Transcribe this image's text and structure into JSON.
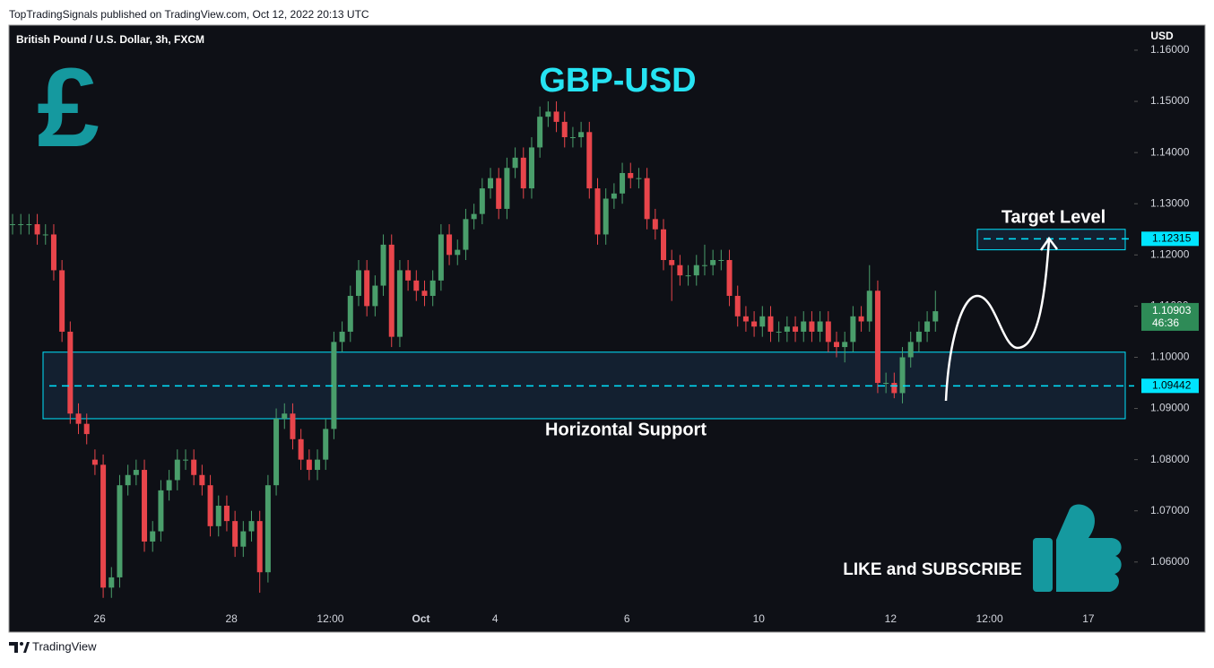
{
  "chart_data": {
    "type": "candlestick",
    "attribution": "TopTradingSignals published on TradingView.com, Oct 12, 2022 20:13 UTC",
    "subtitle": "British Pound / U.S. Dollar, 3h, FXCM",
    "title": "GBP-USD",
    "logo_symbol": "£",
    "y_axis_label": "USD",
    "brand": "TradingView",
    "annotations": [
      "Target Level",
      "Horizontal Support",
      "LIKE and SUBSCRIBE"
    ],
    "up_color": "#4a9e6b",
    "down_color": "#e8454b",
    "level_color": "#00e5ff",
    "categories": [
      null,
      null,
      null,
      null,
      null,
      null,
      null,
      null,
      null,
      null,
      null,
      "26",
      null,
      null,
      null,
      null,
      null,
      null,
      null,
      null,
      null,
      null,
      null,
      null,
      null,
      null,
      null,
      "28",
      null,
      null,
      null,
      null,
      null,
      null,
      null,
      null,
      null,
      null,
      null,
      "12:00",
      null,
      null,
      null,
      null,
      null,
      null,
      null,
      null,
      null,
      null,
      "Oct",
      null,
      null,
      null,
      null,
      null,
      null,
      null,
      null,
      "4",
      null,
      null,
      null,
      null,
      null,
      null,
      null,
      null,
      null,
      null,
      null,
      null,
      null,
      null,
      null,
      "6",
      null,
      null,
      null,
      null,
      null,
      null,
      null,
      null,
      null,
      null,
      null,
      null,
      null,
      null,
      null,
      "10",
      null,
      null,
      null,
      null,
      null,
      null,
      null,
      null,
      null,
      null,
      null,
      null,
      null,
      null,
      null,
      "12",
      null,
      null,
      null,
      null,
      null,
      null,
      null,
      null,
      null,
      null,
      null,
      "12:00",
      null,
      null,
      null,
      null,
      null,
      null,
      null,
      null,
      null,
      null,
      null,
      "17"
    ],
    "open": [
      1.126,
      1.126,
      1.126,
      1.126,
      1.124,
      1.124,
      1.117,
      1.105,
      1.089,
      1.087,
      1.08,
      1.079,
      1.055,
      1.057,
      1.075,
      1.077,
      1.078,
      1.064,
      1.066,
      1.074,
      1.076,
      1.08,
      1.08,
      1.077,
      1.075,
      1.067,
      1.071,
      1.068,
      1.063,
      1.066,
      1.068,
      1.058,
      1.075,
      1.088,
      1.089,
      1.084,
      1.08,
      1.078,
      1.08,
      1.086,
      1.103,
      1.105,
      1.112,
      1.117,
      1.11,
      1.114,
      1.122,
      1.104,
      1.117,
      1.115,
      1.113,
      1.112,
      1.115,
      1.124,
      1.12,
      1.121,
      1.127,
      1.128,
      1.133,
      1.135,
      1.129,
      1.137,
      1.139,
      1.133,
      1.141,
      1.147,
      1.148,
      1.146,
      1.143,
      1.143,
      1.144,
      1.133,
      1.124,
      1.131,
      1.132,
      1.136,
      1.135,
      1.135,
      1.127,
      1.125,
      1.119,
      1.118,
      1.116,
      1.116,
      1.118,
      1.118,
      1.119,
      1.119,
      1.112,
      1.108,
      1.107,
      1.106,
      1.108,
      1.105,
      1.105,
      1.106,
      1.105,
      1.107,
      1.105,
      1.107,
      1.103,
      1.102,
      1.103,
      1.108,
      1.107,
      1.113,
      1.095,
      1.095,
      1.093,
      1.1,
      1.103,
      1.105,
      1.107,
      null,
      null,
      null,
      null,
      null,
      null,
      null,
      null,
      null,
      null,
      null,
      null,
      null,
      null,
      null,
      null,
      null,
      null,
      null
    ],
    "high": [
      1.128,
      1.128,
      1.128,
      1.128,
      1.126,
      1.126,
      1.119,
      1.107,
      1.091,
      1.089,
      1.082,
      1.081,
      1.059,
      1.077,
      1.079,
      1.08,
      1.08,
      1.068,
      1.076,
      1.078,
      1.082,
      1.082,
      1.082,
      1.079,
      1.077,
      1.073,
      1.073,
      1.07,
      1.068,
      1.07,
      1.07,
      1.077,
      1.09,
      1.091,
      1.091,
      1.086,
      1.082,
      1.082,
      1.088,
      1.105,
      1.107,
      1.114,
      1.119,
      1.119,
      1.116,
      1.124,
      1.124,
      1.119,
      1.119,
      1.117,
      1.115,
      1.117,
      1.126,
      1.126,
      1.123,
      1.129,
      1.13,
      1.135,
      1.137,
      1.137,
      1.139,
      1.141,
      1.141,
      1.143,
      1.149,
      1.15,
      1.15,
      1.148,
      1.145,
      1.146,
      1.146,
      1.135,
      1.133,
      1.134,
      1.138,
      1.138,
      1.137,
      1.137,
      1.129,
      1.127,
      1.121,
      1.12,
      1.118,
      1.12,
      1.122,
      1.121,
      1.121,
      1.121,
      1.114,
      1.11,
      1.109,
      1.11,
      1.11,
      1.107,
      1.108,
      1.108,
      1.109,
      1.109,
      1.109,
      1.109,
      1.105,
      1.105,
      1.11,
      1.11,
      1.118,
      1.115,
      1.097,
      1.097,
      1.102,
      1.105,
      1.107,
      1.109,
      1.113,
      null,
      null,
      null,
      null,
      null,
      null,
      null,
      null,
      null,
      null,
      null,
      null,
      null,
      null,
      null,
      null,
      null,
      null,
      null
    ],
    "low": [
      1.124,
      1.124,
      1.124,
      1.122,
      1.122,
      1.115,
      1.103,
      1.087,
      1.085,
      1.083,
      1.077,
      1.053,
      1.053,
      1.055,
      1.073,
      1.075,
      1.062,
      1.062,
      1.064,
      1.072,
      1.074,
      1.078,
      1.075,
      1.073,
      1.065,
      1.065,
      1.066,
      1.061,
      1.061,
      1.064,
      1.054,
      1.056,
      1.073,
      1.086,
      1.082,
      1.078,
      1.076,
      1.076,
      1.078,
      1.084,
      1.101,
      1.103,
      1.11,
      1.108,
      1.108,
      1.112,
      1.102,
      1.102,
      1.113,
      1.111,
      1.11,
      1.11,
      1.113,
      1.118,
      1.118,
      1.119,
      1.125,
      1.126,
      1.131,
      1.127,
      1.127,
      1.135,
      1.131,
      1.131,
      1.139,
      1.145,
      1.144,
      1.141,
      1.141,
      1.141,
      1.131,
      1.122,
      1.122,
      1.129,
      1.13,
      1.133,
      1.133,
      1.125,
      1.123,
      1.117,
      1.111,
      1.114,
      1.114,
      1.114,
      1.116,
      1.116,
      1.117,
      1.11,
      1.106,
      1.105,
      1.104,
      1.104,
      1.103,
      1.103,
      1.103,
      1.103,
      1.103,
      1.103,
      1.103,
      1.101,
      1.1,
      1.099,
      1.101,
      1.105,
      1.105,
      1.093,
      1.093,
      1.092,
      1.091,
      1.098,
      1.101,
      1.103,
      1.105,
      null,
      null,
      null,
      null,
      null,
      null,
      null,
      null,
      null,
      null,
      null,
      null,
      null,
      null,
      null,
      null,
      null,
      null,
      null
    ],
    "close": [
      1.126,
      1.126,
      1.126,
      1.124,
      1.124,
      1.117,
      1.105,
      1.089,
      1.087,
      1.085,
      1.079,
      1.055,
      1.057,
      1.075,
      1.077,
      1.078,
      1.064,
      1.066,
      1.074,
      1.076,
      1.08,
      1.08,
      1.077,
      1.075,
      1.067,
      1.071,
      1.068,
      1.063,
      1.066,
      1.068,
      1.058,
      1.075,
      1.088,
      1.089,
      1.084,
      1.08,
      1.078,
      1.08,
      1.086,
      1.103,
      1.105,
      1.112,
      1.117,
      1.11,
      1.114,
      1.122,
      1.104,
      1.117,
      1.115,
      1.113,
      1.112,
      1.115,
      1.124,
      1.12,
      1.121,
      1.127,
      1.128,
      1.133,
      1.135,
      1.129,
      1.137,
      1.139,
      1.133,
      1.141,
      1.147,
      1.148,
      1.146,
      1.143,
      1.143,
      1.144,
      1.133,
      1.124,
      1.131,
      1.132,
      1.136,
      1.135,
      1.135,
      1.127,
      1.125,
      1.119,
      1.118,
      1.116,
      1.116,
      1.118,
      1.118,
      1.119,
      1.119,
      1.112,
      1.108,
      1.107,
      1.106,
      1.108,
      1.105,
      1.105,
      1.106,
      1.105,
      1.107,
      1.105,
      1.107,
      1.103,
      1.102,
      1.103,
      1.108,
      1.107,
      1.113,
      1.095,
      1.095,
      1.093,
      1.1,
      1.103,
      1.105,
      1.107,
      1.109,
      null,
      null,
      null,
      null,
      null,
      null,
      null,
      null,
      null,
      null,
      null,
      null,
      null,
      null,
      null,
      null,
      null,
      null,
      null
    ],
    "ylim": [
      1.0463,
      1.1649
    ],
    "yticks": [
      {
        "value": 1.16,
        "label": "1.16000"
      },
      {
        "value": 1.15,
        "label": "1.15000"
      },
      {
        "value": 1.14,
        "label": "1.14000"
      },
      {
        "value": 1.13,
        "label": "1.13000"
      },
      {
        "value": 1.12,
        "label": "1.12000"
      },
      {
        "value": 1.11,
        "label": "1.11000"
      },
      {
        "value": 1.1,
        "label": "1.10000"
      },
      {
        "value": 1.09,
        "label": "1.09000"
      },
      {
        "value": 1.08,
        "label": "1.08000"
      },
      {
        "value": 1.07,
        "label": "1.07000"
      },
      {
        "value": 1.06,
        "label": "1.06000"
      }
    ],
    "zones": [
      [
        1.121,
        1.125
      ],
      [
        1.088,
        1.101
      ]
    ],
    "levels": [
      1.12315,
      1.09442
    ],
    "last_price": 1.10903,
    "countdown": "46:36"
  }
}
